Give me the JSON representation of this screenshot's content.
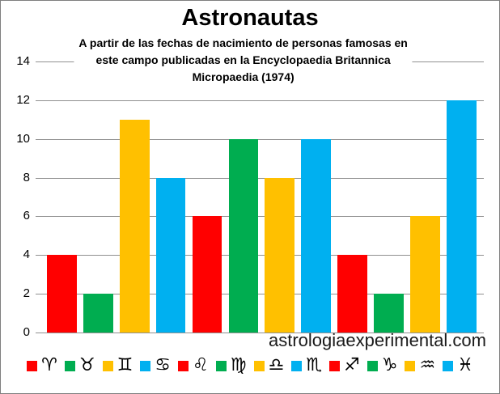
{
  "title": "Astronautas",
  "subtitle_lines": [
    "A partir de las fechas de nacimiento de personas famosas en",
    "este campo publicadas en la Encyclopaedia Britannica",
    "Micropaedia (1974)"
  ],
  "watermark": "astrologiaexperimental.com",
  "colors": {
    "red": "#FF0000",
    "green": "#00AD50",
    "yellow": "#FFC000",
    "blue": "#00B0F0",
    "grid": "#909090",
    "text": "#000000",
    "background": "#FFFFFF"
  },
  "chart_data": {
    "type": "bar",
    "title": "Astronautas",
    "subtitle": "A partir de las fechas de nacimiento de personas famosas en este campo publicadas en la Encyclopaedia Britannica Micropaedia (1974)",
    "categories": [
      "♈",
      "♉",
      "♊",
      "♋",
      "♌",
      "♍",
      "♎",
      "♏",
      "♐",
      "♑",
      "♒",
      "♓"
    ],
    "category_names": [
      "aries",
      "taurus",
      "gemini",
      "cancer",
      "leo",
      "virgo",
      "libra",
      "scorpio",
      "sagittarius",
      "capricorn",
      "aquarius",
      "pisces"
    ],
    "values": [
      4,
      2,
      11,
      8,
      6,
      10,
      8,
      10,
      4,
      2,
      6,
      12
    ],
    "bar_colors": [
      "#FF0000",
      "#00AD50",
      "#FFC000",
      "#00B0F0",
      "#FF0000",
      "#00AD50",
      "#FFC000",
      "#00B0F0",
      "#FF0000",
      "#00AD50",
      "#FFC000",
      "#00B0F0"
    ],
    "xlabel": "",
    "ylabel": "",
    "ylim": [
      0,
      14
    ],
    "yticks": [
      0,
      2,
      4,
      6,
      8,
      10,
      12,
      14
    ],
    "grid": true,
    "legend_position": "bottom",
    "annotation": "astrologiaexperimental.com"
  }
}
